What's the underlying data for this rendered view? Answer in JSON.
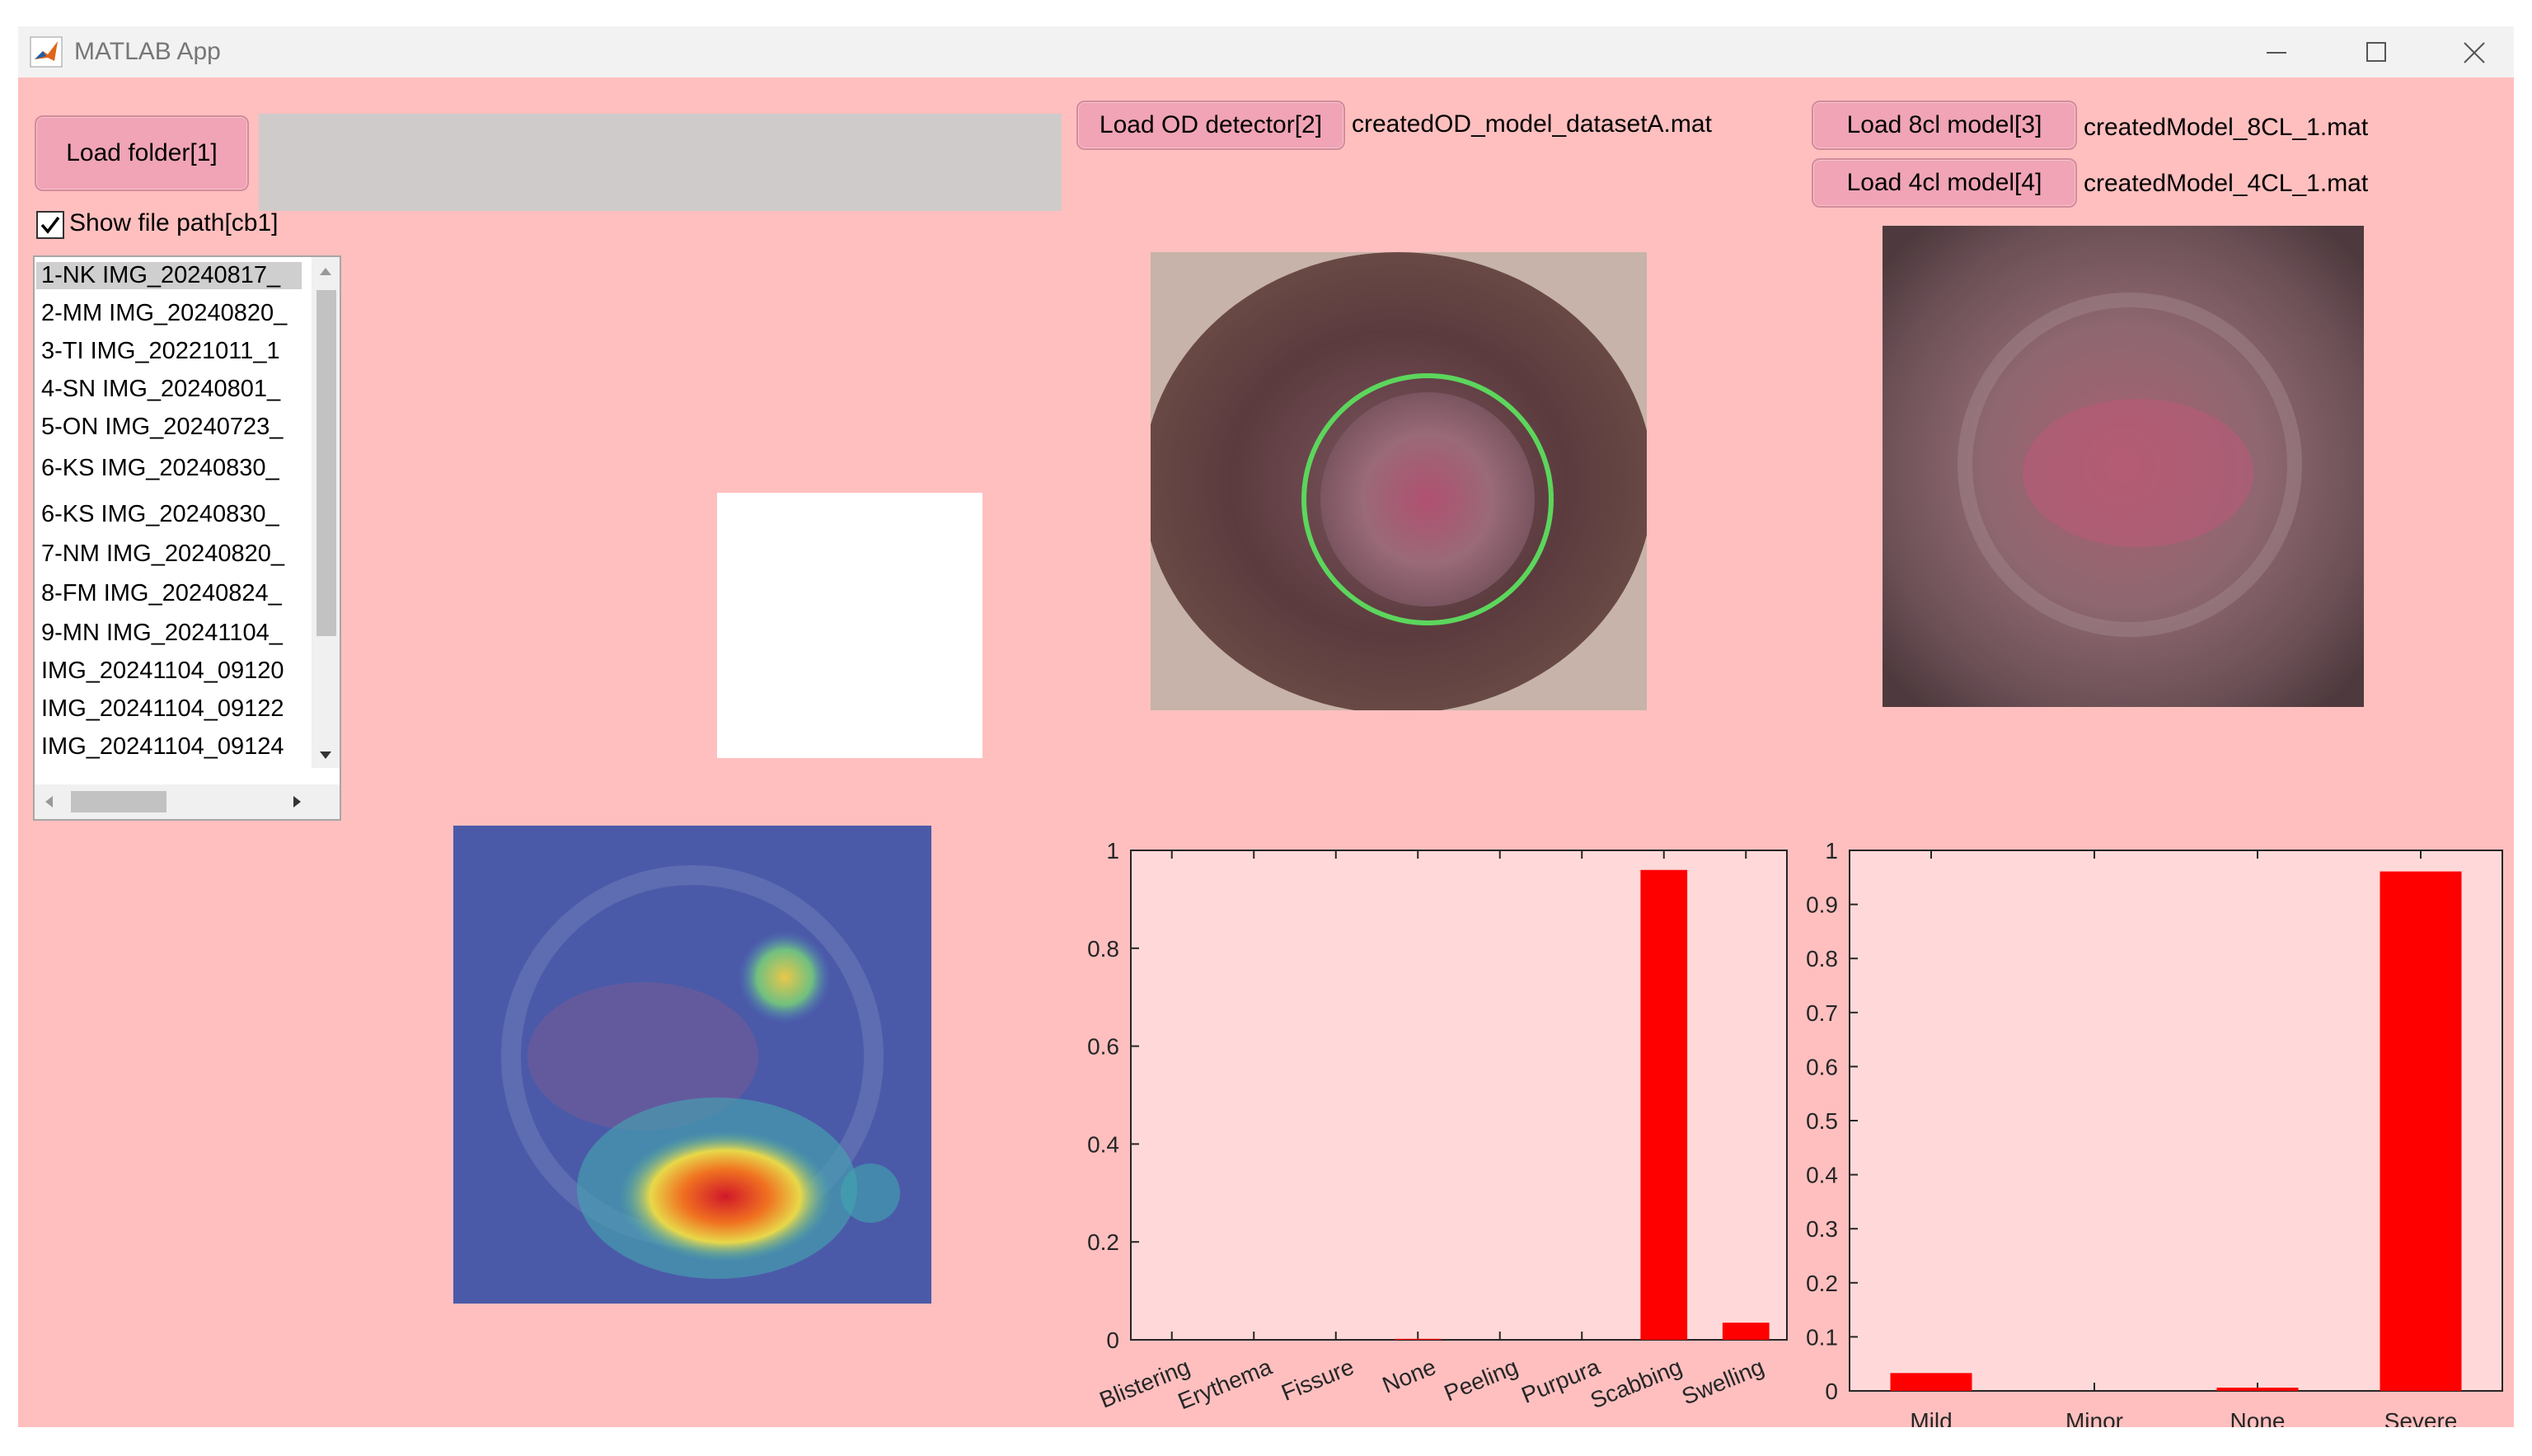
{
  "window": {
    "title": "MATLAB App"
  },
  "toolbar": {
    "load_folder_label": "Load folder[1]",
    "load_od_label": "Load OD detector[2]",
    "od_file": "createdOD_model_datasetA.mat",
    "load_8cl_label": "Load 8cl model[3]",
    "model_8cl_file": "createdModel_8CL_1.mat",
    "load_4cl_label": "Load 4cl model[4]",
    "model_4cl_file": "createdModel_4CL_1.mat"
  },
  "show_path": {
    "label": "Show file path[cb1]",
    "checked": true
  },
  "file_list": [
    "1-NK IMG_20240817_",
    "2-MM IMG_20240820_",
    "3-TI IMG_20221011_1",
    "4-SN IMG_20240801_",
    "5-ON IMG_20240723_",
    "6-KS IMG_20240830_",
    "6-KS IMG_20240830_",
    "7-NM IMG_20240820_",
    "8-FM IMG_20240824_",
    "9-MN IMG_20241104_",
    "IMG_20241104_09120",
    "IMG_20241104_09122",
    "IMG_20241104_09124"
  ],
  "colors": {
    "background": "#ffbfbf",
    "bar": "#ff0000",
    "axes_bg": "#ffd9d9",
    "detection_circle": "#5cd65c"
  },
  "chart_data": [
    {
      "type": "bar",
      "categories": [
        "Blistering",
        "Erythema",
        "Fissure",
        "None",
        "Peeling",
        "Purpura",
        "Scabbing",
        "Swelling"
      ],
      "values": [
        0,
        0,
        0,
        0.002,
        0,
        0,
        0.96,
        0.035
      ],
      "ylim": [
        0,
        1
      ],
      "yticks": [
        "0",
        "0.2",
        "0.4",
        "0.6",
        "0.8",
        "1"
      ],
      "grid": false
    },
    {
      "type": "bar",
      "categories": [
        "Mild",
        "Minor",
        "None",
        "Severe"
      ],
      "values": [
        0.033,
        0,
        0.006,
        0.961
      ],
      "ylim": [
        0,
        1
      ],
      "yticks": [
        "0",
        "0.1",
        "0.2",
        "0.3",
        "0.4",
        "0.5",
        "0.6",
        "0.7",
        "0.8",
        "0.9",
        "1"
      ],
      "grid": false
    }
  ]
}
